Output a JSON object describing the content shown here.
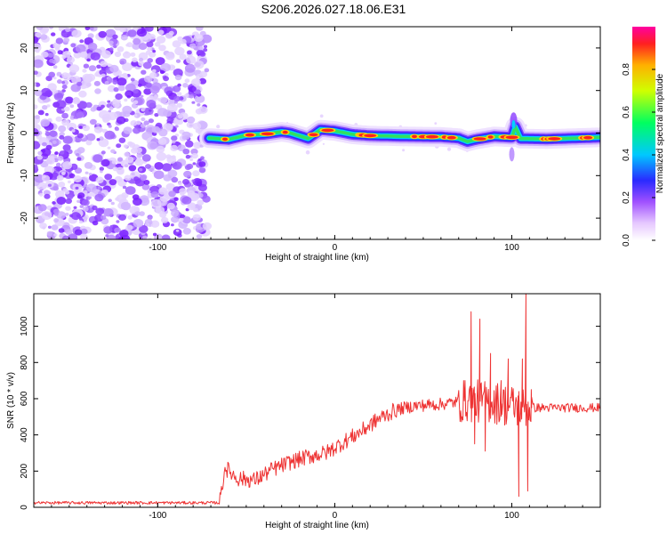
{
  "title": "S206.2026.027.18.06.E31",
  "chart_data": [
    {
      "type": "heatmap",
      "name": "spectrogram",
      "xlabel": "Height of straight line (km)",
      "ylabel": "Frequency (Hz)",
      "xlim": [
        -170,
        150
      ],
      "ylim": [
        -25,
        25
      ],
      "xticks": [
        -100,
        0,
        100
      ],
      "yticks": [
        -20,
        -10,
        0,
        10,
        20
      ],
      "noise_region": {
        "x_from": -170,
        "x_to": -72,
        "description_values": "scattered low amplitude noise, 0.1-0.35"
      },
      "ridge": [
        {
          "x": -70,
          "y": -1.2
        },
        {
          "x": -60,
          "y": -1.5
        },
        {
          "x": -50,
          "y": -0.5
        },
        {
          "x": -40,
          "y": -0.3
        },
        {
          "x": -30,
          "y": 0.3
        },
        {
          "x": -25,
          "y": 0.0
        },
        {
          "x": -15,
          "y": -1.3
        },
        {
          "x": -8,
          "y": 0.8
        },
        {
          "x": 0,
          "y": 0.5
        },
        {
          "x": 10,
          "y": -0.3
        },
        {
          "x": 20,
          "y": -0.6
        },
        {
          "x": 40,
          "y": -0.8
        },
        {
          "x": 60,
          "y": -0.9
        },
        {
          "x": 70,
          "y": -1.2
        },
        {
          "x": 75,
          "y": -2.0
        },
        {
          "x": 80,
          "y": -1.5
        },
        {
          "x": 90,
          "y": -0.8
        },
        {
          "x": 100,
          "y": -1.0
        },
        {
          "x": 102,
          "y": 1.5
        },
        {
          "x": 105,
          "y": -1.3
        },
        {
          "x": 120,
          "y": -1.4
        },
        {
          "x": 135,
          "y": -1.2
        },
        {
          "x": 150,
          "y": -1.0
        }
      ],
      "colorbar": {
        "label": "Normalized spectral amplitude",
        "ticks": [
          "0.0",
          "0.2",
          "0.4",
          "0.6",
          "0.8"
        ],
        "range": [
          0,
          1
        ]
      }
    },
    {
      "type": "line",
      "name": "snr",
      "xlabel": "Height of straight line (km)",
      "ylabel": "SNR (10 * v/v)",
      "xlim": [
        -170,
        150
      ],
      "ylim": [
        0,
        1180
      ],
      "xticks": [
        -100,
        0,
        100
      ],
      "yticks": [
        0,
        200,
        400,
        600,
        800,
        1000
      ],
      "color": "#ee3333",
      "anchors": [
        {
          "x": -170,
          "y": 25
        },
        {
          "x": -65,
          "y": 25
        },
        {
          "x": -62,
          "y": 220
        },
        {
          "x": -55,
          "y": 160
        },
        {
          "x": -45,
          "y": 150
        },
        {
          "x": -35,
          "y": 210
        },
        {
          "x": -25,
          "y": 250
        },
        {
          "x": -15,
          "y": 280
        },
        {
          "x": -5,
          "y": 300
        },
        {
          "x": 5,
          "y": 360
        },
        {
          "x": 15,
          "y": 420
        },
        {
          "x": 25,
          "y": 490
        },
        {
          "x": 35,
          "y": 540
        },
        {
          "x": 45,
          "y": 560
        },
        {
          "x": 60,
          "y": 570
        },
        {
          "x": 75,
          "y": 590
        },
        {
          "x": 90,
          "y": 580
        },
        {
          "x": 100,
          "y": 560
        },
        {
          "x": 110,
          "y": 550
        },
        {
          "x": 130,
          "y": 550
        },
        {
          "x": 150,
          "y": 550
        }
      ],
      "spikes": [
        {
          "x": 77,
          "y": 1080
        },
        {
          "x": 79,
          "y": 350
        },
        {
          "x": 82,
          "y": 1040
        },
        {
          "x": 85,
          "y": 310
        },
        {
          "x": 88,
          "y": 850
        },
        {
          "x": 94,
          "y": 700
        },
        {
          "x": 98,
          "y": 820
        },
        {
          "x": 104,
          "y": 60
        },
        {
          "x": 106,
          "y": 820
        },
        {
          "x": 108,
          "y": 1180
        },
        {
          "x": 109,
          "y": 90
        },
        {
          "x": 111,
          "y": 650
        }
      ]
    }
  ]
}
